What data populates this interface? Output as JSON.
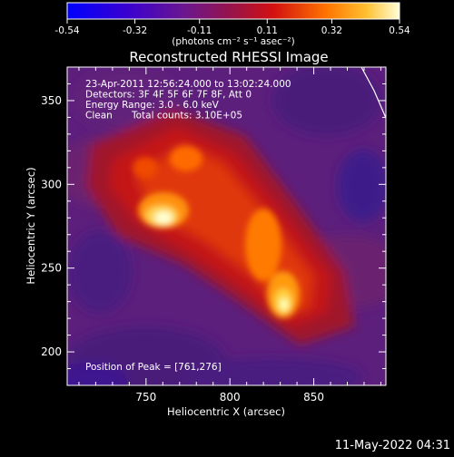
{
  "colorbar": {
    "tick_labels": [
      "-0.54",
      "-0.32",
      "-0.11",
      "0.11",
      "0.32",
      "0.54"
    ],
    "ticks": [
      -0.54,
      -0.32,
      -0.11,
      0.11,
      0.32,
      0.54
    ],
    "range": [
      -0.54,
      0.54
    ],
    "units_label": "(photons cm⁻² s⁻¹ asec⁻²)"
  },
  "chart_data": {
    "type": "heatmap",
    "title": "Reconstructed RHESSI Image",
    "xlabel": "Heliocentric X (arcsec)",
    "ylabel": "Heliocentric Y (arcsec)",
    "xlim": [
      703,
      893
    ],
    "ylim": [
      180,
      370
    ],
    "x_ticks": [
      750,
      800,
      850
    ],
    "y_ticks": [
      200,
      250,
      300,
      350
    ],
    "grid": false,
    "annotations": [
      "23-Apr-2011 12:56:24.000 to 13:02:24.000",
      "Detectors: 3F 4F 5F 6F 7F 8F, Att 0",
      "Energy Range: 3.0 - 6.0 keV",
      "Clean",
      "Total counts: 3.10E+05"
    ],
    "peak_label": "Position of Peak = [761,276]",
    "peak": [
      761,
      276
    ],
    "sources": [
      {
        "x": 761,
        "y": 276,
        "peak_value": 0.54
      },
      {
        "x": 830,
        "y": 229,
        "peak_value": 0.45
      }
    ],
    "colormap": [
      "#0000ff",
      "#2a00c8",
      "#5a1296",
      "#7a1f6e",
      "#a0143a",
      "#c81414",
      "#e64a00",
      "#ff8c00",
      "#ffd040",
      "#ffffd0"
    ]
  },
  "footer": {
    "date": "11-May-2022 04:31"
  }
}
